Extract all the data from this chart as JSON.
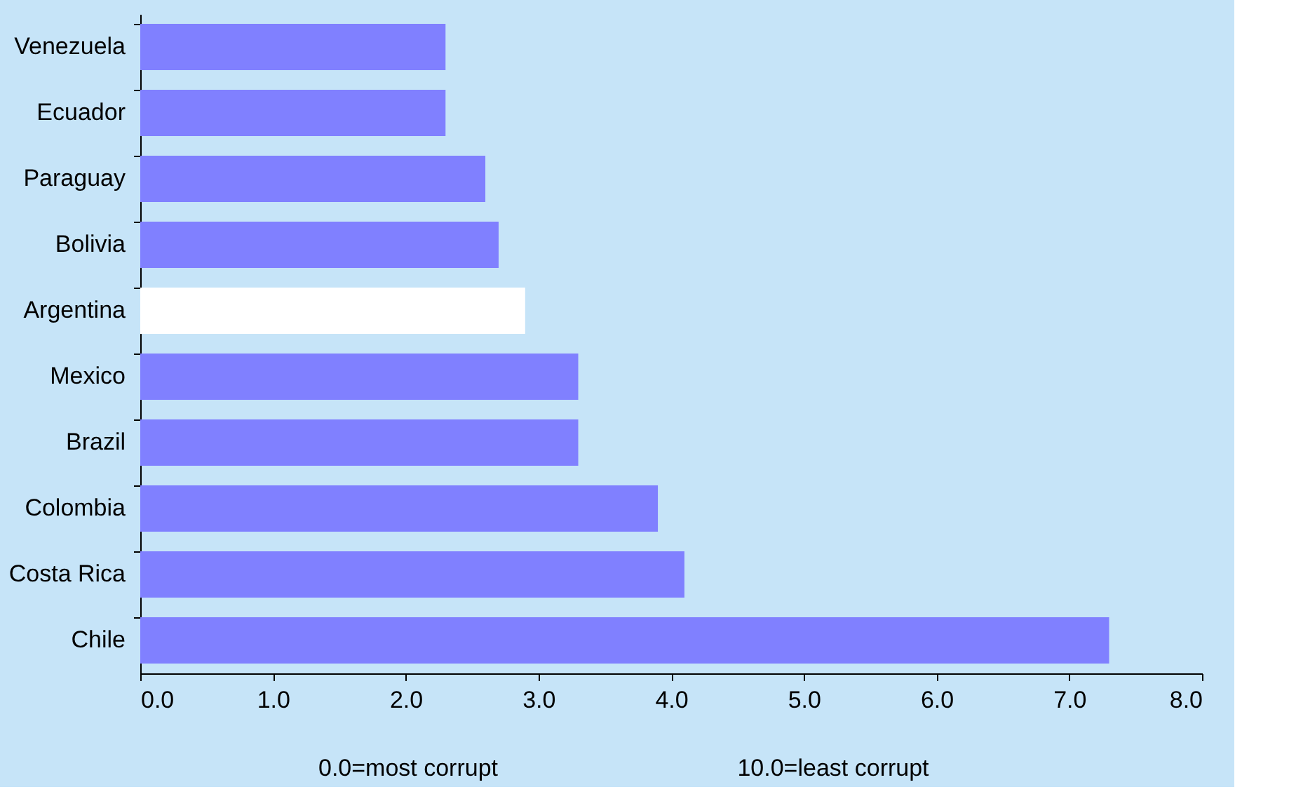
{
  "chart_data": {
    "type": "bar",
    "orientation": "horizontal",
    "categories": [
      "Venezuela",
      "Ecuador",
      "Paraguay",
      "Bolivia",
      "Argentina",
      "Mexico",
      "Brazil",
      "Colombia",
      "Costa Rica",
      "Chile"
    ],
    "values": [
      2.3,
      2.3,
      2.6,
      2.7,
      2.9,
      3.3,
      3.3,
      3.9,
      4.1,
      7.3
    ],
    "colors": [
      "#8080ff",
      "#8080ff",
      "#8080ff",
      "#8080ff",
      "#ffffff",
      "#8080ff",
      "#8080ff",
      "#8080ff",
      "#8080ff",
      "#8080ff"
    ],
    "xlim": [
      0,
      8
    ],
    "xticks": [
      {
        "value": 0,
        "label": "0.0"
      },
      {
        "value": 1,
        "label": "1.0"
      },
      {
        "value": 2,
        "label": "2.0"
      },
      {
        "value": 3,
        "label": "3.0"
      },
      {
        "value": 4,
        "label": "4.0"
      },
      {
        "value": 5,
        "label": "5.0"
      },
      {
        "value": 6,
        "label": "6.0"
      },
      {
        "value": 7,
        "label": "7.0"
      },
      {
        "value": 8,
        "label": "8.0"
      }
    ],
    "annotations": [
      "0.0=most corrupt",
      "10.0=least corrupt"
    ],
    "grid": false
  }
}
